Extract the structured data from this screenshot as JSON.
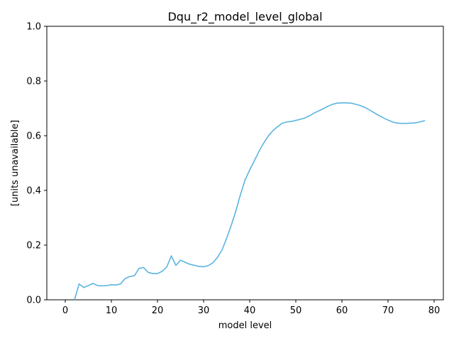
{
  "chart_data": {
    "type": "line",
    "title": "Dqu_r2_model_level_global",
    "xlabel": "model level",
    "ylabel": "[units unavailable]",
    "xlim": [
      -4,
      82
    ],
    "ylim": [
      0,
      1.0
    ],
    "xticks": [
      0,
      10,
      20,
      30,
      40,
      50,
      60,
      70,
      80
    ],
    "yticks": [
      0.0,
      0.2,
      0.4,
      0.6,
      0.8,
      1.0
    ],
    "xtick_labels": [
      "0",
      "10",
      "20",
      "30",
      "40",
      "50",
      "60",
      "70",
      "80"
    ],
    "ytick_labels": [
      "0.0",
      "0.2",
      "0.4",
      "0.6",
      "0.8",
      "1.0"
    ],
    "grid": false,
    "series": [
      {
        "color": "#5ab4e0",
        "x": [
          2,
          3,
          4,
          5,
          6,
          7,
          8,
          9,
          10,
          11,
          12,
          13,
          14,
          15,
          16,
          17,
          18,
          19,
          20,
          21,
          22,
          23,
          24,
          25,
          26,
          27,
          28,
          29,
          30,
          31,
          32,
          33,
          34,
          35,
          36,
          37,
          38,
          39,
          40,
          41,
          42,
          43,
          44,
          45,
          46,
          47,
          48,
          49,
          50,
          51,
          52,
          53,
          54,
          55,
          56,
          57,
          58,
          59,
          60,
          61,
          62,
          63,
          64,
          65,
          66,
          67,
          68,
          69,
          70,
          71,
          72,
          73,
          74,
          75,
          76,
          77,
          78
        ],
        "y": [
          0.0,
          0.058,
          0.045,
          0.052,
          0.06,
          0.052,
          0.051,
          0.052,
          0.055,
          0.054,
          0.058,
          0.078,
          0.085,
          0.088,
          0.115,
          0.118,
          0.1,
          0.096,
          0.096,
          0.104,
          0.12,
          0.16,
          0.126,
          0.145,
          0.137,
          0.13,
          0.126,
          0.122,
          0.121,
          0.125,
          0.135,
          0.155,
          0.182,
          0.225,
          0.272,
          0.325,
          0.385,
          0.438,
          0.475,
          0.508,
          0.542,
          0.572,
          0.598,
          0.618,
          0.632,
          0.645,
          0.65,
          0.652,
          0.656,
          0.66,
          0.665,
          0.673,
          0.683,
          0.691,
          0.699,
          0.708,
          0.715,
          0.719,
          0.72,
          0.72,
          0.719,
          0.715,
          0.71,
          0.703,
          0.694,
          0.684,
          0.674,
          0.665,
          0.657,
          0.65,
          0.646,
          0.645,
          0.645,
          0.646,
          0.647,
          0.651,
          0.655
        ]
      }
    ]
  }
}
